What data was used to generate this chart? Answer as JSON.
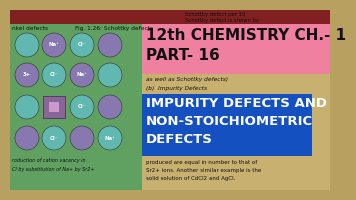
{
  "bg_color": "#b8a060",
  "page_color": "#c8b070",
  "title_box_color": "#f080a0",
  "title_line1": "12th CHEMISTRY CH.- 1",
  "title_line2": "PART- 16",
  "blue_box_color": "#1550c0",
  "blue_text_line1": "IMPURITY DEFECTS AND",
  "blue_text_line2": "NON-STOICHIOMETRIC",
  "blue_text_line3": "DEFECTS",
  "left_bg_color": "#60a060",
  "small_text_left_top": "nkel defects",
  "small_text_mid_top": "Fig. 1.26: Schottky defects",
  "small_text_right_top1": "Schottky defect per 10",
  "small_text_right_top2": "Schottky defect is shown by",
  "body_text1": "as well as Schottky defects)",
  "body_text2": "(b)  Impurity Defects",
  "body_text3": "produced are equal in number to that of",
  "body_text4": "Sr2+ ions. Another similar example is the",
  "body_text5": "solid solution of CdCl2 and AgCl.",
  "left_bottom_text1": "roduction of cation vacancy in",
  "left_bottom_text2": "Cl by substitution of Na+ by Sr2+",
  "cl_color": "#60b8b0",
  "na_color": "#909090",
  "na2_color": "#8878b0",
  "vacancy_color": "#886644"
}
